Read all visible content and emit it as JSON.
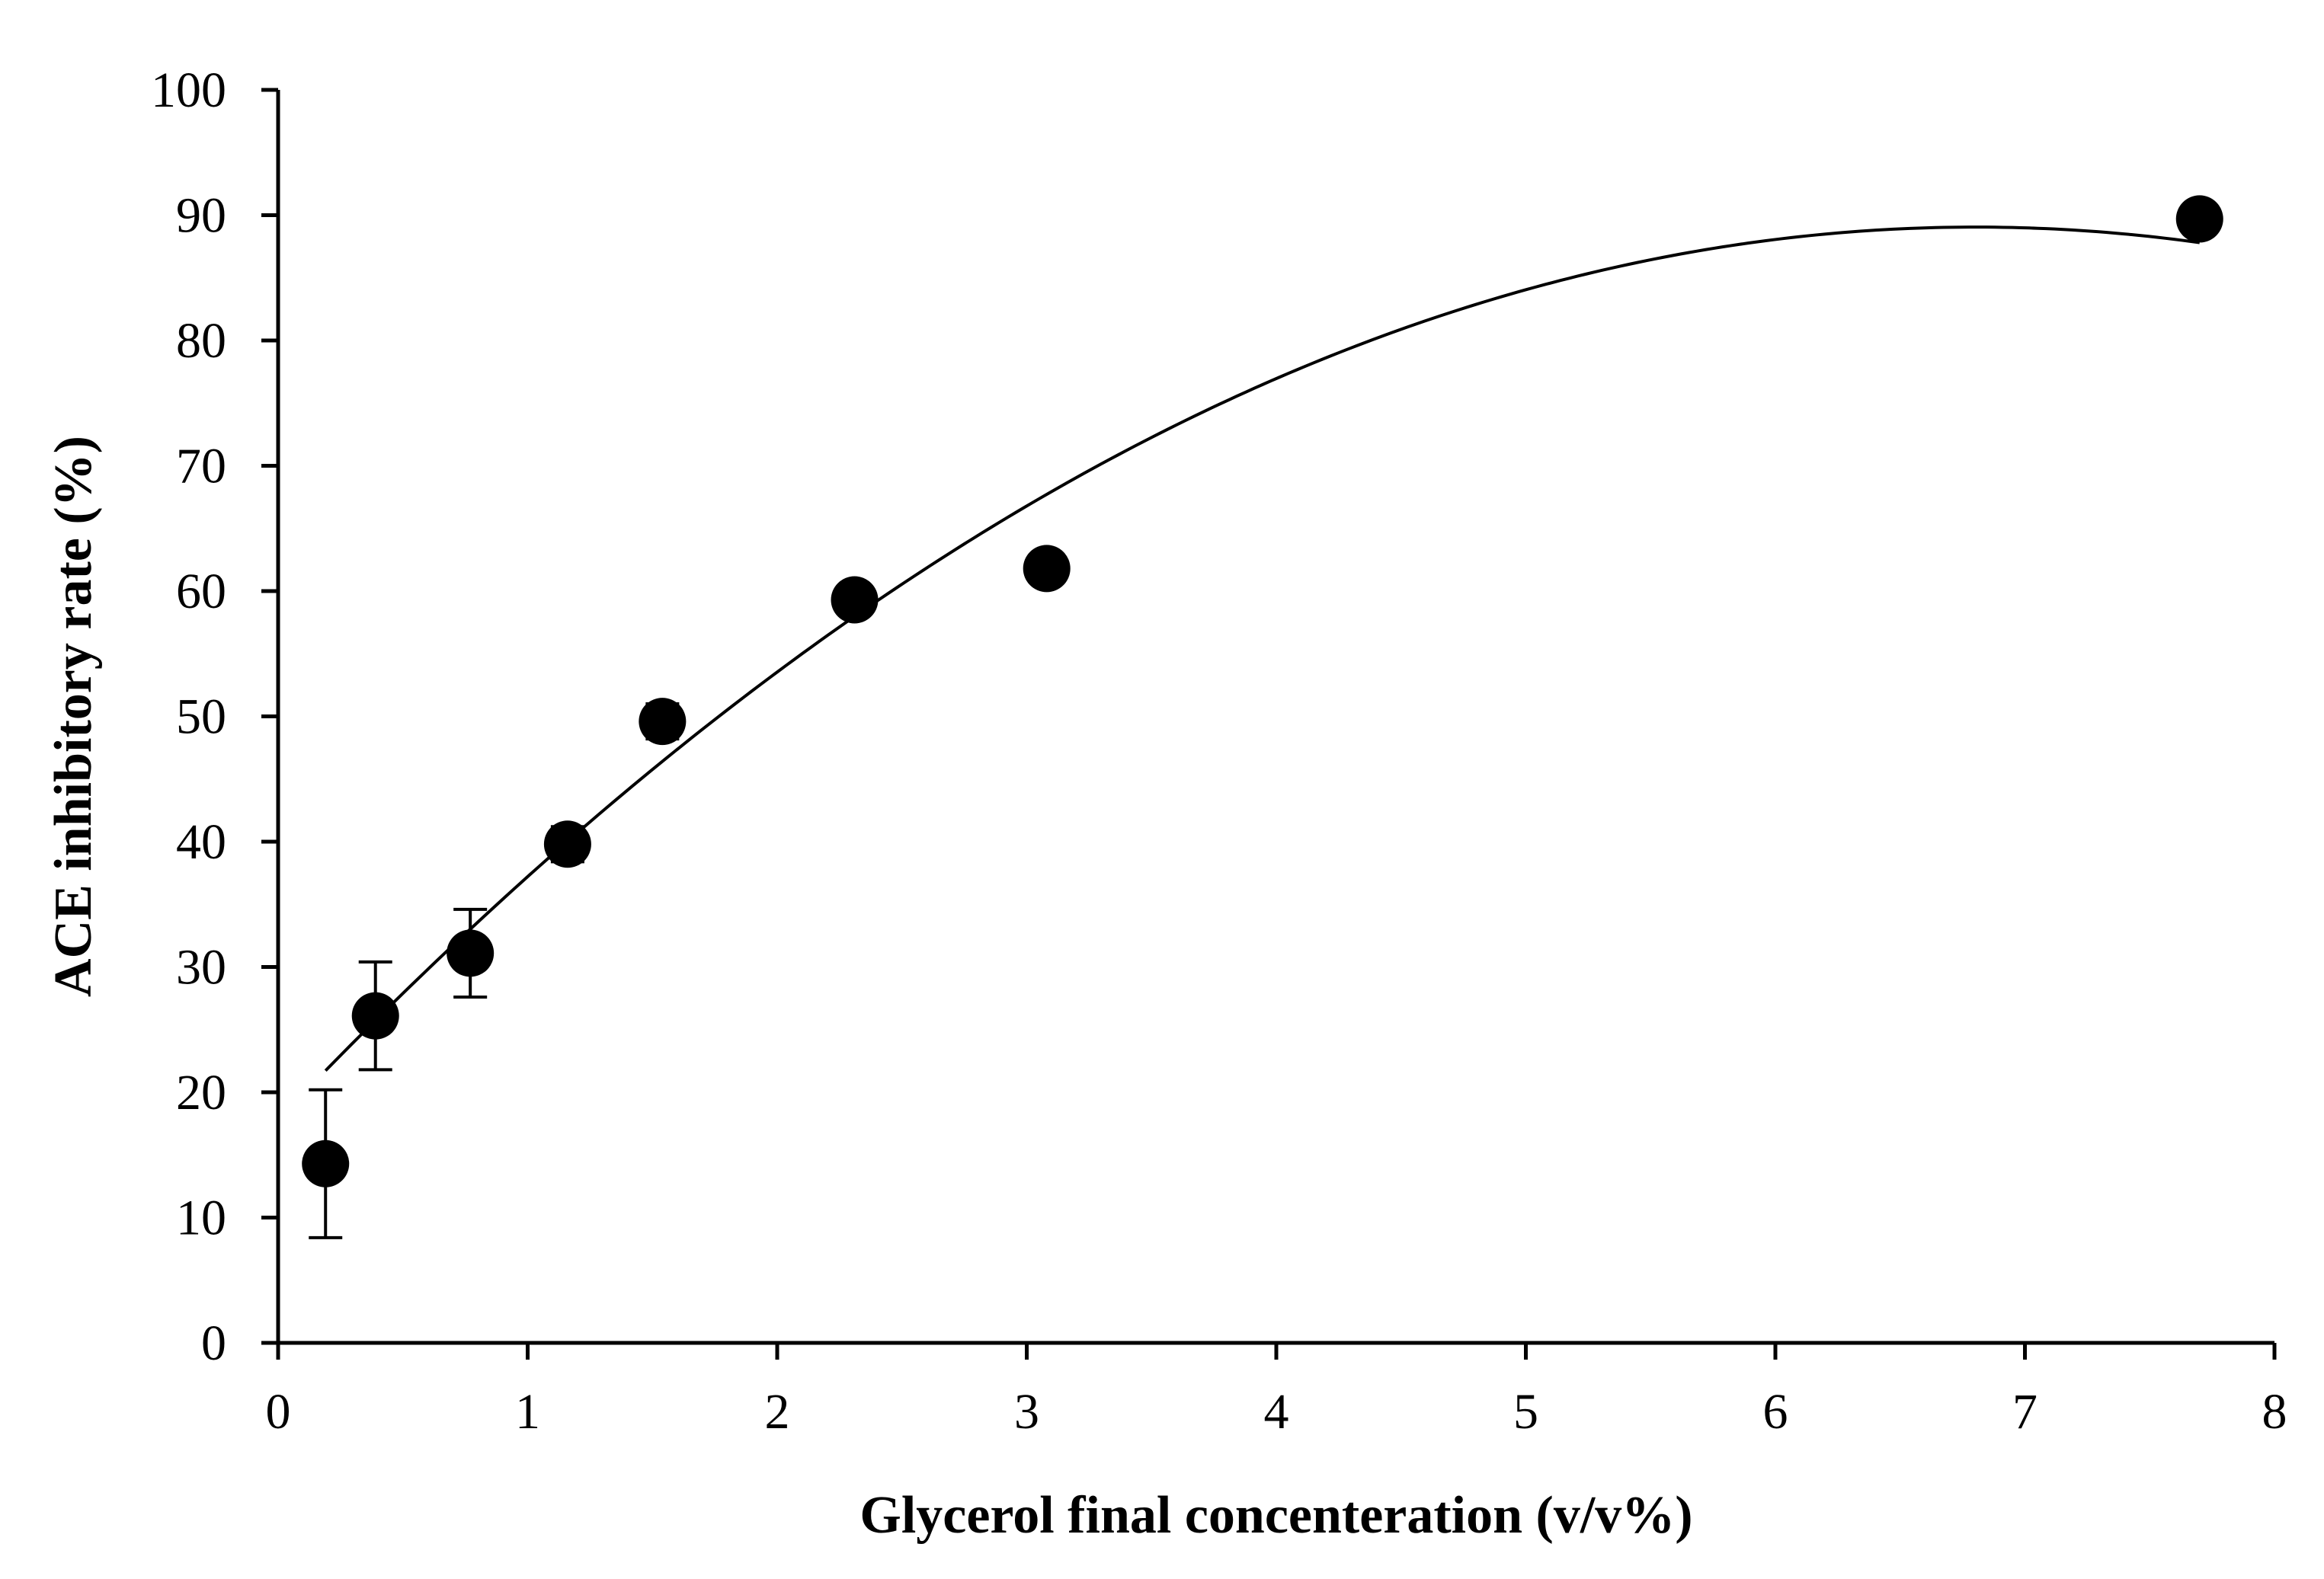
{
  "chart_data": {
    "type": "scatter",
    "title": "",
    "xlabel": "Glycerol final concenteration (v/v%)",
    "ylabel": "ACE inhibitory rate (%)",
    "xlim": [
      0,
      8
    ],
    "ylim": [
      0,
      100
    ],
    "xticks": [
      0,
      1,
      2,
      3,
      4,
      5,
      6,
      7,
      8
    ],
    "yticks": [
      0,
      10,
      20,
      30,
      40,
      50,
      60,
      70,
      80,
      90,
      100
    ],
    "xtick_labels": [
      "0",
      "1",
      "2",
      "3",
      "4",
      "5",
      "6",
      "7",
      "8"
    ],
    "ytick_labels": [
      "0",
      "10",
      "20",
      "30",
      "40",
      "50",
      "60",
      "70",
      "80",
      "90",
      "100"
    ],
    "grid": false,
    "series": [
      {
        "name": "ACE inhibitory rate",
        "x": [
          0.19,
          0.39,
          0.77,
          1.16,
          1.54,
          2.31,
          3.08,
          7.7
        ],
        "y": [
          14.3,
          26.1,
          31.1,
          39.8,
          49.6,
          59.3,
          61.8,
          89.7
        ],
        "error": [
          5.9,
          4.3,
          3.5,
          1.4,
          1.4,
          0.5,
          0.5,
          0.5
        ],
        "color": "#000000"
      }
    ],
    "trendline": {
      "type": "polynomial",
      "order": 2,
      "coefficients": [
        17.8,
        20.95,
        -1.54
      ],
      "x_range": [
        0.19,
        7.7
      ],
      "color": "#000000"
    }
  }
}
